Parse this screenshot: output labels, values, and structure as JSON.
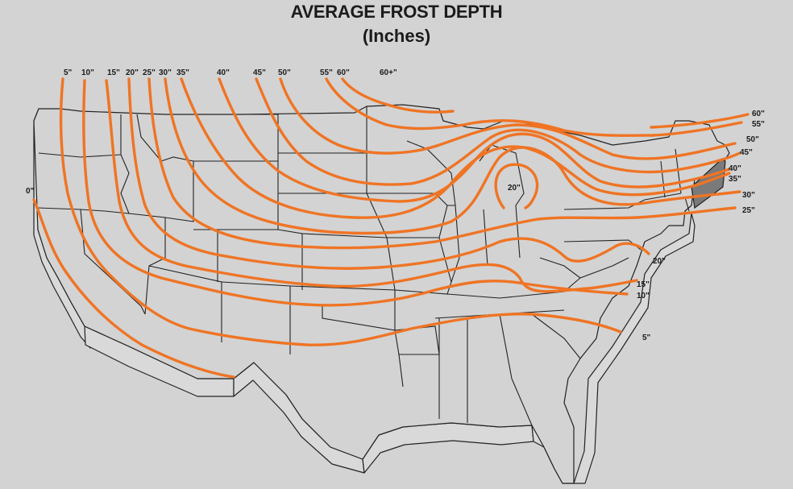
{
  "title": "AVERAGE FROST DEPTH",
  "subtitle": "(Inches)",
  "colors": {
    "background": "#d3d3d3",
    "contour": "#ef7424",
    "outline": "#222222",
    "shaded_region": "#7a7a7a"
  },
  "top_labels": [
    "5\"",
    "10\"",
    "15\"",
    "20\"",
    "25\"",
    "30\"",
    "35\"",
    "40\"",
    "45\"",
    "50\"",
    "55\"",
    "60\"",
    "60+\""
  ],
  "left_labels": [
    "0\""
  ],
  "center_labels": [
    "20\""
  ],
  "right_labels": [
    "60\"",
    "55\"",
    "50\"",
    "45\"",
    "40\"",
    "35\"",
    "30\"",
    "25\"",
    "20\"",
    "15\"",
    "10\"",
    "5\""
  ]
}
